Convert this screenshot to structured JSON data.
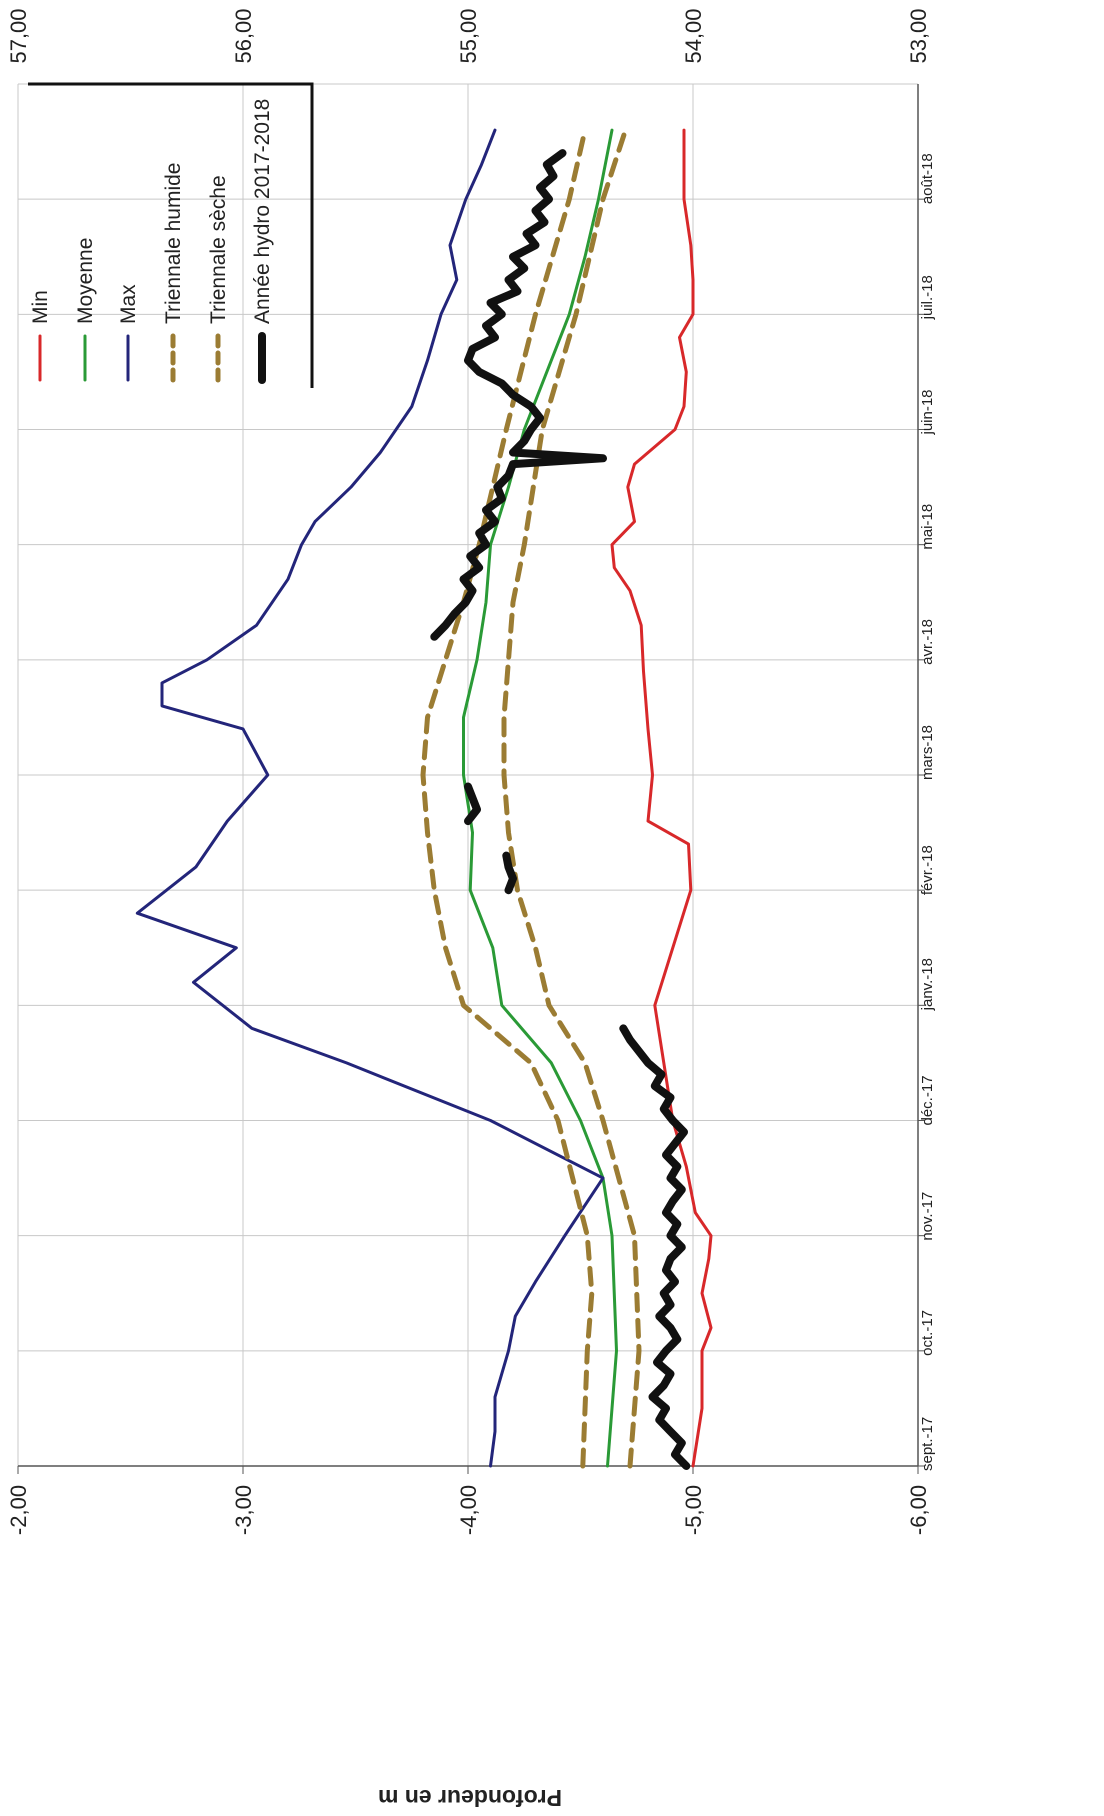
{
  "chart_data": {
    "type": "line",
    "title": "",
    "ylabel": "Profondeur en m",
    "ylim": [
      -6,
      -2
    ],
    "y2lim": [
      53,
      57
    ],
    "y_ticks": [
      "-2,00",
      "-3,00",
      "-4,00",
      "-5,00",
      "-6,00"
    ],
    "y2_ticks": [
      "57,00",
      "56,00",
      "55,00",
      "54,00",
      "53,00"
    ],
    "x_ticks": [
      "sept.-17",
      "oct.-17",
      "nov.-17",
      "déc.-17",
      "janv.-18",
      "févr.-18",
      "mars-18",
      "avr.-18",
      "mai-18",
      "juin-18",
      "juil.-18",
      "août-18"
    ],
    "grid": true,
    "legend_position": "top-right",
    "colors": {
      "min": "#d8282a",
      "moyenne": "#2a9a36",
      "max": "#23257a",
      "triennale": "#9b7c33",
      "annee": "#111111",
      "grid": "#c8c8c8",
      "axis": "#555555"
    },
    "series": [
      {
        "name": "Min",
        "key": "min",
        "x": [
          0,
          0.5,
          1,
          1.2,
          1.5,
          1.8,
          2.0,
          2.2,
          2.6,
          3.0,
          3.5,
          4.0,
          5.0,
          5.4,
          5.6,
          6.0,
          6.4,
          6.9,
          7.3,
          7.6,
          7.8,
          8.0,
          8.2,
          8.5,
          8.7,
          9.0,
          9.2,
          9.5,
          9.8,
          10.0,
          10.3,
          10.6,
          11.0,
          11.3,
          11.6
        ],
        "values": [
          -5.0,
          -5.04,
          -5.04,
          -5.08,
          -5.04,
          -5.07,
          -5.08,
          -5.01,
          -4.97,
          -4.91,
          -4.87,
          -4.83,
          -4.99,
          -4.98,
          -4.8,
          -4.82,
          -4.8,
          -4.78,
          -4.77,
          -4.72,
          -4.65,
          -4.64,
          -4.74,
          -4.71,
          -4.74,
          -4.92,
          -4.96,
          -4.97,
          -4.94,
          -5.0,
          -5.0,
          -4.99,
          -4.96,
          -4.96,
          -4.96
        ]
      },
      {
        "name": "Moyenne",
        "key": "moyenne",
        "x": [
          0,
          1,
          2,
          2.5,
          3,
          3.5,
          4.0,
          4.5,
          5,
          5.5,
          6.0,
          6.5,
          7.0,
          7.5,
          8.0,
          8.5,
          9.0,
          9.5,
          10.0,
          10.5,
          11.0,
          11.6
        ],
        "values": [
          -4.62,
          -4.66,
          -4.64,
          -4.6,
          -4.5,
          -4.37,
          -4.15,
          -4.11,
          -4.01,
          -4.02,
          -3.98,
          -3.98,
          -4.04,
          -4.08,
          -4.1,
          -4.18,
          -4.25,
          -4.35,
          -4.45,
          -4.52,
          -4.58,
          -4.64
        ]
      },
      {
        "name": "Max",
        "key": "max",
        "x": [
          0,
          0.3,
          0.6,
          1.0,
          1.3,
          1.6,
          2.0,
          2.5,
          3.0,
          3.5,
          3.8,
          4.2,
          4.5,
          4.8,
          5.2,
          5.6,
          6.0,
          6.4,
          6.6,
          6.8,
          7.0,
          7.3,
          7.7,
          8.0,
          8.2,
          8.5,
          8.8,
          9.2,
          9.6,
          10.0,
          10.3,
          10.6,
          11.0,
          11.3,
          11.6
        ],
        "values": [
          -4.1,
          -4.12,
          -4.12,
          -4.18,
          -4.21,
          -4.3,
          -4.43,
          -4.6,
          -4.1,
          -3.46,
          -3.04,
          -2.78,
          -2.97,
          -2.53,
          -2.79,
          -2.93,
          -3.11,
          -3.0,
          -2.64,
          -2.64,
          -2.84,
          -3.06,
          -3.2,
          -3.26,
          -3.32,
          -3.48,
          -3.61,
          -3.75,
          -3.82,
          -3.88,
          -3.95,
          -3.92,
          -3.99,
          -4.06,
          -4.12
        ]
      },
      {
        "name": "Triennale humide",
        "key": "triennale_humide",
        "x": [
          0,
          1,
          1.5,
          2,
          3,
          3.5,
          4.0,
          4.5,
          5.0,
          5.5,
          6.0,
          6.5,
          7.0,
          7.5,
          8.0,
          9.0,
          10.0,
          11.0,
          11.6
        ],
        "values": [
          -4.51,
          -4.53,
          -4.55,
          -4.53,
          -4.4,
          -4.28,
          -3.98,
          -3.9,
          -3.85,
          -3.82,
          -3.8,
          -3.82,
          -3.9,
          -3.98,
          -4.05,
          -4.17,
          -4.3,
          -4.45,
          -4.52
        ]
      },
      {
        "name": "Triennale sèche",
        "key": "triennale_seche",
        "x": [
          0,
          1,
          2,
          3,
          3.5,
          4.0,
          4.5,
          5.0,
          5.5,
          6.0,
          6.5,
          7.0,
          7.5,
          8.0,
          9.0,
          10.0,
          11.0,
          11.6
        ],
        "values": [
          -4.72,
          -4.76,
          -4.74,
          -4.6,
          -4.52,
          -4.36,
          -4.3,
          -4.22,
          -4.18,
          -4.16,
          -4.16,
          -4.18,
          -4.2,
          -4.25,
          -4.33,
          -4.48,
          -4.6,
          -4.7
        ]
      },
      {
        "name": "Année hydro 2017-2018",
        "key": "annee",
        "segments": [
          {
            "x": [
              0.0,
              0.1,
              0.2,
              0.3,
              0.4,
              0.5,
              0.6,
              0.7,
              0.8,
              0.9,
              1.0,
              1.1,
              1.2,
              1.3,
              1.4,
              1.5,
              1.6,
              1.7,
              1.8,
              1.9,
              2.0,
              2.1,
              2.2,
              2.3,
              2.4,
              2.5,
              2.6,
              2.7,
              2.8,
              2.9,
              3.0,
              3.1,
              3.2,
              3.3,
              3.4,
              3.5,
              3.6,
              3.7,
              3.8
            ],
            "values": [
              -4.97,
              -4.92,
              -4.95,
              -4.9,
              -4.85,
              -4.88,
              -4.82,
              -4.87,
              -4.9,
              -4.84,
              -4.88,
              -4.93,
              -4.9,
              -4.85,
              -4.9,
              -4.87,
              -4.92,
              -4.88,
              -4.9,
              -4.95,
              -4.9,
              -4.93,
              -4.88,
              -4.91,
              -4.95,
              -4.9,
              -4.93,
              -4.88,
              -4.92,
              -4.96,
              -4.91,
              -4.87,
              -4.9,
              -4.83,
              -4.86,
              -4.8,
              -4.76,
              -4.72,
              -4.69
            ]
          },
          {
            "x": [
              5.0,
              5.1,
              5.2,
              5.3
            ],
            "values": [
              -4.18,
              -4.2,
              -4.18,
              -4.17
            ]
          },
          {
            "x": [
              5.6,
              5.7,
              5.8,
              5.9
            ],
            "values": [
              -4.0,
              -4.04,
              -4.02,
              -4.0
            ]
          },
          {
            "x": [
              7.2,
              7.3,
              7.4,
              7.5,
              7.6,
              7.7,
              7.8,
              7.9,
              8.0,
              8.1,
              8.2,
              8.3,
              8.4,
              8.5,
              8.6,
              8.7,
              8.75,
              8.8,
              8.9,
              9.0,
              9.1,
              9.2,
              9.3,
              9.4,
              9.5,
              9.6,
              9.7,
              9.8,
              9.9,
              10.0,
              10.1,
              10.2,
              10.3,
              10.4,
              10.5,
              10.6,
              10.7,
              10.8,
              10.9,
              11.0,
              11.1,
              11.2,
              11.3,
              11.4
            ],
            "values": [
              -3.85,
              -3.9,
              -3.94,
              -3.99,
              -4.02,
              -3.98,
              -4.05,
              -4.01,
              -4.08,
              -4.05,
              -4.12,
              -4.08,
              -4.15,
              -4.13,
              -4.18,
              -4.2,
              -4.6,
              -4.2,
              -4.25,
              -4.28,
              -4.32,
              -4.28,
              -4.2,
              -4.15,
              -4.05,
              -4.0,
              -4.02,
              -4.12,
              -4.08,
              -4.15,
              -4.1,
              -4.22,
              -4.18,
              -4.25,
              -4.2,
              -4.3,
              -4.26,
              -4.34,
              -4.3,
              -4.36,
              -4.32,
              -4.38,
              -4.35,
              -4.42
            ]
          }
        ]
      }
    ]
  }
}
